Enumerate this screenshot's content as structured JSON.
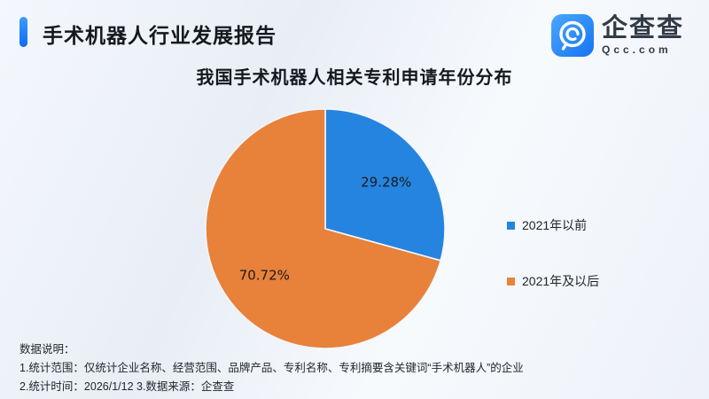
{
  "header": {
    "report_title": "手术机器人行业发展报告",
    "logo": {
      "name": "企查查",
      "domain": "Qcc.com"
    }
  },
  "chart_data": {
    "type": "pie",
    "title": "我国手术机器人相关专利申请年份分布",
    "labels": [
      "2021年以前",
      "2021年及以后"
    ],
    "values": [
      29.28,
      70.72
    ],
    "slice_labels": [
      "29.28%",
      "70.72%"
    ],
    "colors": [
      "#2584e0",
      "#e8813a"
    ],
    "start_angle_deg": 0,
    "direction": "clockwise",
    "legend_position": "right"
  },
  "theme": {
    "accent_blue": "#1477f2",
    "logo_blue_light": "#4aa8ff",
    "logo_blue_dark": "#1673f0",
    "background_light": "#f4f7fc",
    "text_dark": "#15181e"
  },
  "footnotes": {
    "heading": "数据说明：",
    "line1": "1.统计范围：仅统计企业名称、经营范围、品牌产品、专利名称、专利摘要含关键词“手术机器人”的企业",
    "line2": "2.统计时间：2026/1/12  3.数据来源：企查查"
  }
}
